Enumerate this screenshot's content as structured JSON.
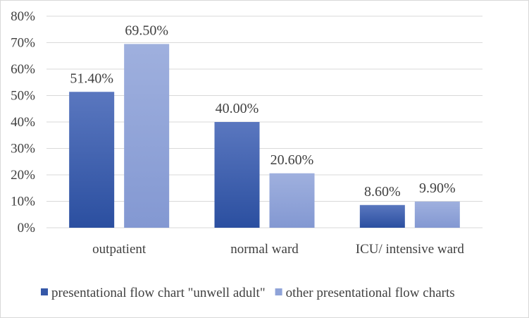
{
  "chart_data": {
    "type": "bar",
    "categories": [
      "outpatient",
      "normal ward",
      "ICU/ intensive ward"
    ],
    "series": [
      {
        "name": "presentational flow chart \"unwell adult\"",
        "values": [
          51.4,
          40.0,
          8.6
        ],
        "labels": [
          "51.40%",
          "40.00%",
          "8.60%"
        ],
        "color": "#3558a8"
      },
      {
        "name": "other presentational flow charts",
        "values": [
          69.5,
          20.6,
          9.9
        ],
        "labels": [
          "69.50%",
          "20.60%",
          "9.90%"
        ],
        "color": "#8fa3d8"
      }
    ],
    "ylim": [
      0,
      80
    ],
    "yticks": [
      0,
      10,
      20,
      30,
      40,
      50,
      60,
      70,
      80
    ],
    "ytick_labels": [
      "0%",
      "10%",
      "20%",
      "30%",
      "40%",
      "50%",
      "60%",
      "70%",
      "80%"
    ],
    "grid": true,
    "legend_position": "bottom",
    "title": "",
    "xlabel": "",
    "ylabel": ""
  }
}
